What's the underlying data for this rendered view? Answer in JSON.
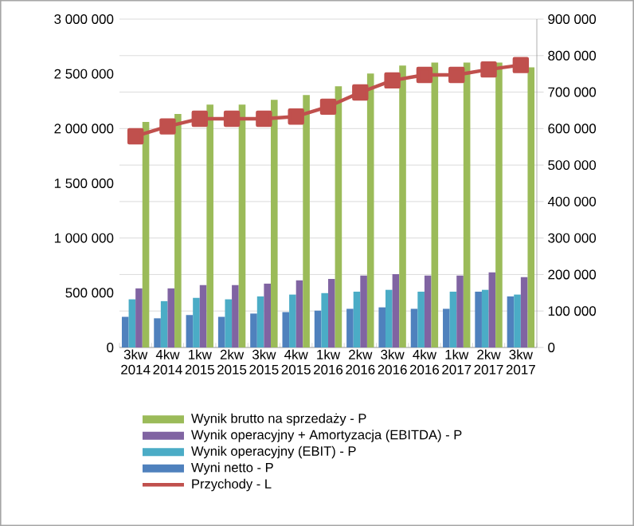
{
  "chart_data": {
    "type": "bar",
    "categories": [
      "3kw 2014",
      "4kw 2014",
      "1kw 2015",
      "2kw 2015",
      "3kw 2015",
      "4kw 2015",
      "1kw 2016",
      "2kw 2016",
      "3kw 2016",
      "4kw 2016",
      "1kw 2017",
      "2kw 2017",
      "3kw 2017"
    ],
    "series": [
      {
        "name": "Wyni netto - P",
        "color": "#4f81bd",
        "axis": "y2",
        "values": [
          84000,
          80000,
          89000,
          84000,
          93000,
          97000,
          101000,
          106000,
          110000,
          106000,
          106000,
          153000,
          140000
        ]
      },
      {
        "name": "Wynik operacyjny (EBIT) - P",
        "color": "#4bacc6",
        "axis": "y2",
        "values": [
          132000,
          127000,
          136000,
          132000,
          140000,
          145000,
          149000,
          153000,
          158000,
          153000,
          153000,
          158000,
          145000
        ]
      },
      {
        "name": "Wynik operacyjny + Amortyzacja (EBITDA) - P",
        "color": "#8064a2",
        "axis": "y2",
        "values": [
          162000,
          162000,
          171000,
          171000,
          175000,
          184000,
          188000,
          197000,
          201000,
          197000,
          197000,
          206000,
          193000
        ]
      },
      {
        "name": "Wynik brutto na sprzedaży - P",
        "color": "#9bbb59",
        "axis": "y2",
        "values": [
          618000,
          640000,
          666000,
          666000,
          679000,
          692000,
          716000,
          751000,
          773000,
          781000,
          781000,
          781000,
          768000
        ]
      },
      {
        "name": "Przychody - L",
        "type": "line",
        "color": "#c0504d",
        "axis": "y",
        "marker": "square",
        "values": [
          1930000,
          2020000,
          2090000,
          2090000,
          2090000,
          2110000,
          2200000,
          2330000,
          2440000,
          2490000,
          2490000,
          2540000,
          2580000
        ]
      }
    ],
    "ylim": [
      0,
      3000000
    ],
    "yticks": [
      {
        "value": 0,
        "label": "0"
      },
      {
        "value": 500000,
        "label": "500 000"
      },
      {
        "value": 1000000,
        "label": "1 000 000"
      },
      {
        "value": 1500000,
        "label": "1 500 000"
      },
      {
        "value": 2000000,
        "label": "2 000 000"
      },
      {
        "value": 2500000,
        "label": "2 500 000"
      },
      {
        "value": 3000000,
        "label": "3 000 000"
      }
    ],
    "y2lim": [
      0,
      900000
    ],
    "y2ticks": [
      {
        "value": 0,
        "label": "0"
      },
      {
        "value": 100000,
        "label": "100 000"
      },
      {
        "value": 200000,
        "label": "200 000"
      },
      {
        "value": 300000,
        "label": "300 000"
      },
      {
        "value": 400000,
        "label": "400 000"
      },
      {
        "value": 500000,
        "label": "500 000"
      },
      {
        "value": 600000,
        "label": "600 000"
      },
      {
        "value": 700000,
        "label": "700 000"
      },
      {
        "value": 800000,
        "label": "800 000"
      },
      {
        "value": 900000,
        "label": "900 000"
      }
    ],
    "grid": "y",
    "legend": "bottom"
  }
}
